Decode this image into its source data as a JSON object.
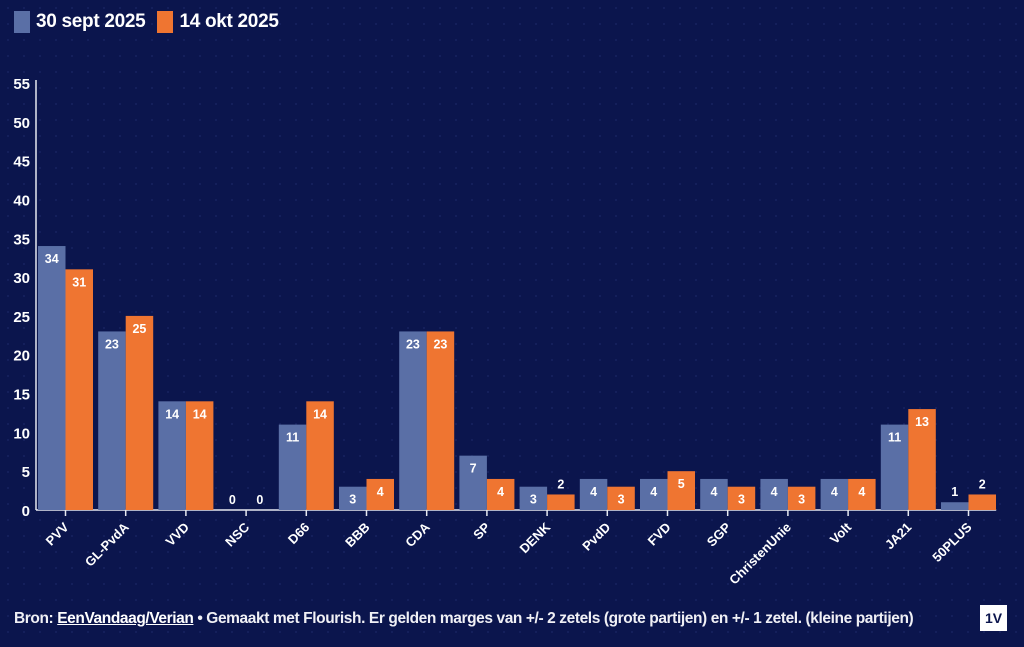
{
  "chart_data": {
    "type": "bar",
    "title": "",
    "xlabel": "",
    "ylabel": "",
    "ylim": [
      0,
      55
    ],
    "yticks": [
      0,
      5,
      10,
      15,
      20,
      25,
      30,
      35,
      40,
      45,
      50,
      55
    ],
    "grid": false,
    "legend_position": "top-left",
    "categories": [
      "PVV",
      "GL-PvdA",
      "VVD",
      "NSC",
      "D66",
      "BBB",
      "CDA",
      "SP",
      "DENK",
      "PvdD",
      "FVD",
      "SGP",
      "ChristenUnie",
      "Volt",
      "JA21",
      "50PLUS"
    ],
    "series": [
      {
        "name": "30 sept 2025",
        "color": "#5a6fa6",
        "values": [
          34,
          23,
          14,
          0,
          11,
          3,
          23,
          7,
          3,
          4,
          4,
          4,
          4,
          4,
          11,
          1
        ]
      },
      {
        "name": "14 okt 2025",
        "color": "#ef7531",
        "values": [
          31,
          25,
          14,
          0,
          14,
          4,
          23,
          4,
          2,
          3,
          5,
          3,
          3,
          4,
          13,
          2
        ]
      }
    ]
  },
  "footer": {
    "prefix": "Bron: ",
    "link": "EenVandaag/Verian",
    "text": " • Gemaakt met Flourish. Er gelden marges van +/- 2 zetels (grote partijen) en +/- 1 zetel. (kleine partijen)"
  },
  "logo": "1V"
}
